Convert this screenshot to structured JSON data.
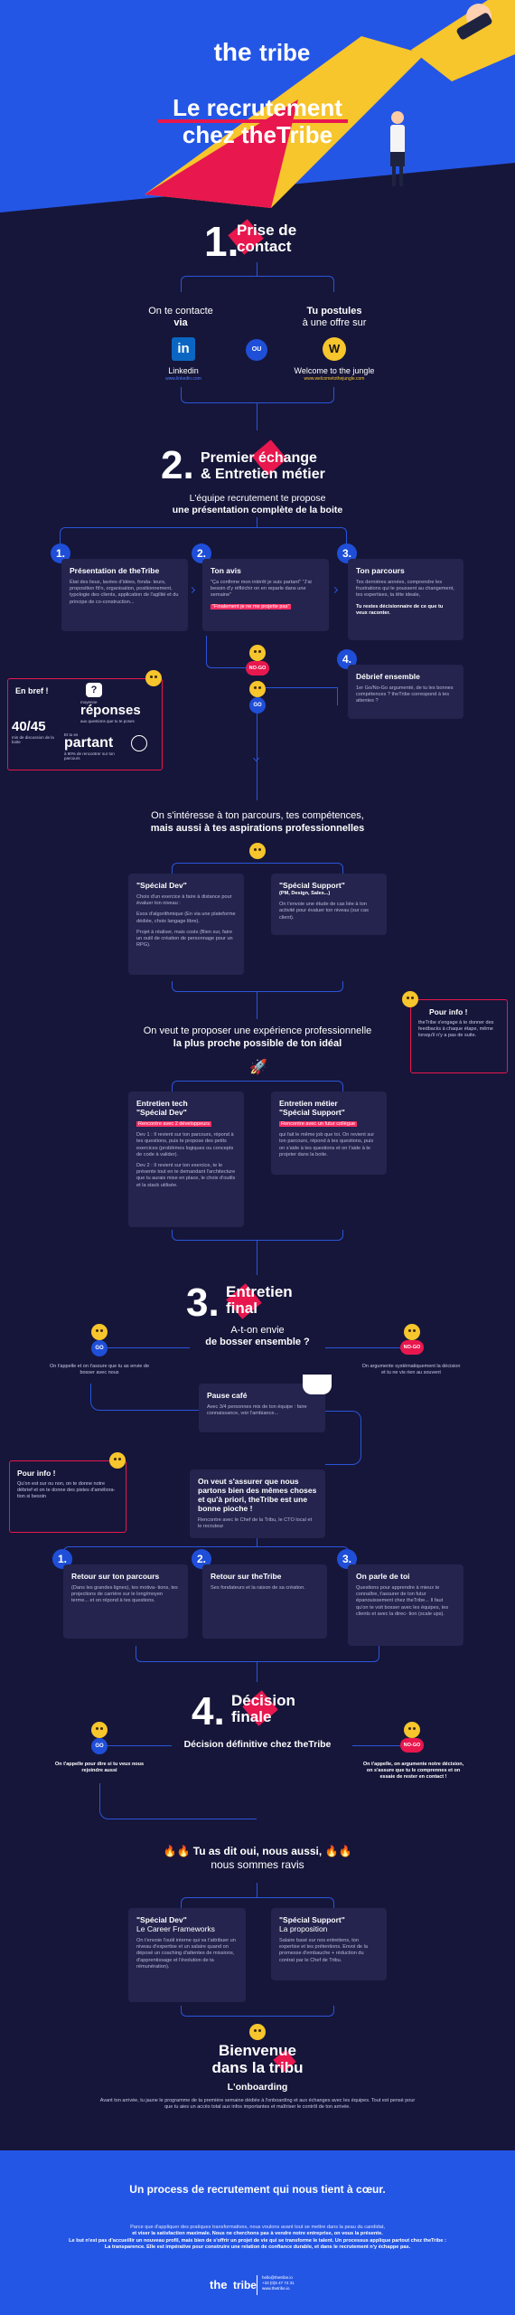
{
  "hero": {
    "logo_the": "the",
    "logo_tribe": "tribe",
    "title_line1": "Le recrutement",
    "title_line2": "chez theTribe"
  },
  "step1": {
    "num": "1.",
    "title_l1": "Prise de",
    "title_l2": "contact",
    "left_l1": "On te contacte",
    "left_l2": "via",
    "left_logo": "in",
    "left_label": "Linkedin",
    "left_url": "www.linkedin.com",
    "or": "OU",
    "right_l1": "Tu postules",
    "right_l2": "à une offre sur",
    "right_logo": "W",
    "right_label": "Welcome to the jungle",
    "right_url": "www.welcometothejungle.com"
  },
  "step2": {
    "num": "2.",
    "title_l1": "Premier échange",
    "title_l2": "& Entretien métier",
    "sub_l1": "L'équipe recrutement te propose",
    "sub_l2": "une présentation complète de la boite",
    "cards": [
      {
        "n": "1.",
        "title": "Présentation de theTribe",
        "body": "État des lieux, lavées d'idées, fonda- teurs, proposition fit'n, organisation, positionnement, typologie des clients, application de l'agilité et du principe de co-construction..."
      },
      {
        "n": "2.",
        "title": "Ton avis",
        "body": "\"Ça confirme mon intérêt je suis partant\" \"J'ai besoin d'y réfléchir on en reparle dans une semaine\"",
        "highlight": "\"Finalement je ne me projette pas\""
      },
      {
        "n": "3.",
        "title": "Ton parcours",
        "body": "Tes dernières années, comprendre les frustrations qui te poussent au changement, tes expertises, ta tête ideale,",
        "highlight": "Tu restes décisionnaire de ce que tu veux raconter."
      },
      {
        "n": "4.",
        "title": "Débrief ensemble",
        "body": "1er Go/No-Go argumenté, de tu les bonnes compétences ? theTribe correspond à tes attentes ?"
      }
    ],
    "go": "GO",
    "nogo": "NO-GO",
    "en_bref": "En bref !",
    "stat1_prefix": "moyenne",
    "stat1_big": "réponses",
    "stat1_sub": "aux questions que tu te poses",
    "stat2_big": "40/45",
    "stat2_sub": "min de discussion de la boite",
    "stat3_prefix": "Et tu es",
    "stat3_big": "partant",
    "stat3_sub": "à 90% de rencontrer sur ton parcours"
  },
  "section_interest": {
    "line1": "On s'intéresse à ton parcours, tes compétences,",
    "line2": "mais aussi à tes aspirations professionnelles",
    "card_dev_title": "\"Spécial Dev\"",
    "card_dev_body": "Choix d'un exercice à faire à distance pour évaluer ton niveau :",
    "card_dev_opt1": "Exos d'algorithmique (En via une plateforme dédiée, choix langage libre).",
    "card_dev_opt2": "Projet à réaliser, mais costs (Bien sur, faire un outil de création de personnage pour un RPG).",
    "card_sup_title": "\"Spécial Support\"",
    "card_sup_sub": "(PM, Design, Sales...)",
    "card_sup_body": "On t'envoie une étude de cas liée à ton activité pour évaluer ton niveau (sur cas client).",
    "info_title": "Pour info !",
    "info_body": "theTribe s'engage à te donner des feedbacks à chaque étape, même lorsqu'il n'y a pas de suite."
  },
  "section_experience": {
    "line1": "On veut te proposer une expérience professionnelle",
    "line2": "la plus proche possible de ton idéal",
    "card_dev_title_l1": "Entretien tech",
    "card_dev_title_l2": "\"Spécial Dev\"",
    "card_dev_hl": "Rencontre avec 2 développeurs",
    "card_dev_body": "Dev 1 : Il revient sur ton parcours, répond à tes questions, puis te propose des petits exercices (problèmes logiques ou concepts de code à valider).",
    "card_dev_body2": "Dev 2 : Il revient sur ton exercice, te le présente tout en te demandant l'architecture que tu aurais mise en place, le choix d'outils et la stack utilisée.",
    "card_sup_title_l1": "Entretien métier",
    "card_sup_title_l2": "\"Spécial Support\"",
    "card_sup_hl": "Rencontre avec un futur collègue",
    "card_sup_body": "qui fait le même job que toi. On revient sur ton parcours, répond à tes questions, puis on s'aide à tes questions et on t'aide à te projeter dans la boite."
  },
  "step3": {
    "num": "3.",
    "title_l1": "Entretien",
    "title_l2": "final",
    "q_l1": "A-t-on envie",
    "q_l2": "de bosser ensemble ?",
    "go_text": "On t'appelle et on t'assure que tu as envie de bosser avec nous",
    "nogo_text": "On argumente systématiquement la décision et tu ne vis rien au souvent",
    "pause_title": "Pause café",
    "pause_body": "Avec 3/4 personnes mix de ton équipe : faire connaissance, voir l'ambiance...",
    "vision_title": "On veut s'assurer que nous partons bien des mêmes choses et qu'à priori, theTribe est une bonne pioche !",
    "vision_body": "Rencontre avec le Chef de la Tribu, le CTO local et le recruteur",
    "info_title": "Pour info !",
    "info_body": "Qu'on est sur ou non, on te donne notre débrief et on te donne des pistes d'améliora- tion si besoin",
    "cards": [
      {
        "n": "1.",
        "title": "Retour sur ton parcours",
        "body": "(Dans les grandes lignes), tes motiva- tions, tes projections de carrière sur le long/moyen terme... et on répond à tes questions."
      },
      {
        "n": "2.",
        "title": "Retour sur theTribe",
        "body": "Ses fondateurs et la raison de sa création."
      },
      {
        "n": "3.",
        "title": "On parle de toi",
        "body": "Questions pour apprendre à mieux te connaître, t'assurer de ton futur épanouissement chez theTribe... Il faut qu'on te voit bosser avec les équipes, tes clients et avec la direc- tion (scale ups)."
      }
    ]
  },
  "step4": {
    "num": "4.",
    "title_l1": "Décision",
    "title_l2": "finale",
    "sub": "Décision définitive chez theTribe",
    "go_text": "On t'appelle pour dire si tu veux nous rejoindre aussi",
    "nogo_text": "On t'appelle, on argumente notre décision, on s'assure que tu le comprennes et on essaie de rester en contact !",
    "yes_l1": "Tu as dit oui, nous aussi,",
    "yes_l2": "nous sommes ravis",
    "card_dev_title": "\"Spécial Dev\"",
    "card_dev_sub": "Le Career Frameworks",
    "card_dev_body": "On t'envoie l'outil interne qui va t'attribuer un niveau d'expertise et un salaire quand on déposé un coaching d'attentes de missions, d'apprentissage et l'évolution de ta rémunération).",
    "card_sup_title": "\"Spécial Support\"",
    "card_sup_sub": "La proposition",
    "card_sup_body": "Salaire basé sur nos entretiens, ton expertise et tes prétentions. Envoi de la promesse d'embauche + réduction du contrat par le Chef de Tribu."
  },
  "onboarding": {
    "title_l1": "Bienvenue",
    "title_l2": "dans la tribu",
    "sub": "L'onboarding",
    "body": "Avant ton arrivée, tu jaune le programme de ta première semaine dédiée à l'onboarding et aux échanges avec les équipes. Tout est pensé pour que tu aies un accès total aux infos importantes et maîtriser le contrôl de ton arrivée."
  },
  "footer": {
    "title": "Un process de recrutement qui nous tient à cœur.",
    "body1": "Parce que d'appliquer des pratiques transformatives, nous voulons avant tout se mettre dans la peau du candidat,",
    "body2": "et viser la satisfaction maximale. Nous ne cherchons pas à vendre notre entreprise, on vous la présente.",
    "body3": "Le but n'est pas d'accueillir un nouveau profil, mais bien de s'offrir un projet de vie qui se transforme le talent. Un processus applique partout chez theTribe :",
    "body4": "La transparence. Elle est impérative pour construire une relation de confiance durable, et dans le recrutement n'y échappe pas.",
    "logo_the": "the",
    "logo_tribe": "tribe",
    "contact1": "hello@thetribe.io",
    "contact2": "+33 (0)5 47 74 31",
    "contact3": "www.thetribe.io"
  },
  "colors": {
    "background": "#16163a",
    "blue": "#1f4fd8",
    "pink": "#e8174e",
    "yellow": "#f7c52c",
    "card": "#24244e"
  }
}
